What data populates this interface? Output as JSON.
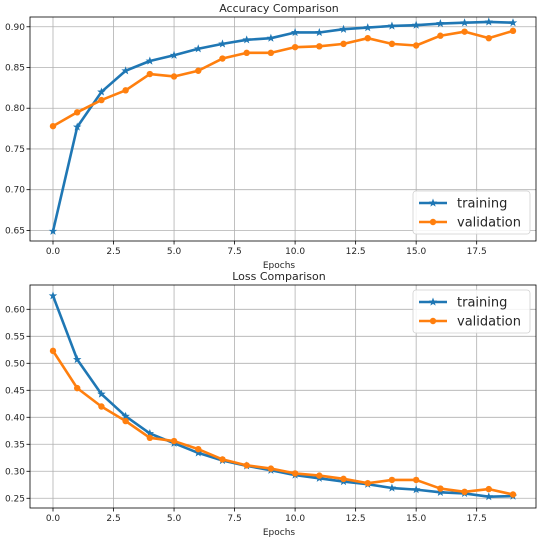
{
  "colors": {
    "training": "#1f77b4",
    "validation": "#ff7f0e"
  },
  "chart_data": [
    {
      "type": "line",
      "title": "Accuracy Comparison",
      "xlabel": "Epochs",
      "ylabel": "",
      "xlim": [
        -0.95,
        19.95
      ],
      "ylim": [
        0.637,
        0.912
      ],
      "xticks": [
        0.0,
        2.5,
        5.0,
        7.5,
        10.0,
        12.5,
        15.0,
        17.5
      ],
      "xtick_labels": [
        "0.0",
        "2.5",
        "5.0",
        "7.5",
        "10.0",
        "12.5",
        "15.0",
        "17.5"
      ],
      "yticks": [
        0.65,
        0.7,
        0.75,
        0.8,
        0.85,
        0.9
      ],
      "ytick_labels": [
        "0.65",
        "0.70",
        "0.75",
        "0.80",
        "0.85",
        "0.90"
      ],
      "grid": true,
      "legend_position": "bottom-right",
      "x": [
        0,
        1,
        2,
        3,
        4,
        5,
        6,
        7,
        8,
        9,
        10,
        11,
        12,
        13,
        14,
        15,
        16,
        17,
        18,
        19
      ],
      "series": [
        {
          "name": "training",
          "marker": "star",
          "values": [
            0.649,
            0.777,
            0.82,
            0.846,
            0.858,
            0.865,
            0.873,
            0.879,
            0.884,
            0.886,
            0.893,
            0.893,
            0.897,
            0.899,
            0.901,
            0.902,
            0.904,
            0.905,
            0.906,
            0.905
          ]
        },
        {
          "name": "validation",
          "marker": "circle",
          "values": [
            0.778,
            0.795,
            0.81,
            0.822,
            0.842,
            0.839,
            0.846,
            0.861,
            0.868,
            0.868,
            0.875,
            0.876,
            0.879,
            0.886,
            0.879,
            0.877,
            0.889,
            0.894,
            0.886,
            0.895
          ]
        }
      ]
    },
    {
      "type": "line",
      "title": "Loss Comparison",
      "xlabel": "Epochs",
      "ylabel": "",
      "xlim": [
        -0.95,
        19.95
      ],
      "ylim": [
        0.232,
        0.645
      ],
      "xticks": [
        0.0,
        2.5,
        5.0,
        7.5,
        10.0,
        12.5,
        15.0,
        17.5
      ],
      "xtick_labels": [
        "0.0",
        "2.5",
        "5.0",
        "7.5",
        "10.0",
        "12.5",
        "15.0",
        "17.5"
      ],
      "yticks": [
        0.25,
        0.3,
        0.35,
        0.4,
        0.45,
        0.5,
        0.55,
        0.6
      ],
      "ytick_labels": [
        "0.25",
        "0.30",
        "0.35",
        "0.40",
        "0.45",
        "0.50",
        "0.55",
        "0.60"
      ],
      "grid": true,
      "legend_position": "top-right",
      "x": [
        0,
        1,
        2,
        3,
        4,
        5,
        6,
        7,
        8,
        9,
        10,
        11,
        12,
        13,
        14,
        15,
        16,
        17,
        18,
        19
      ],
      "series": [
        {
          "name": "training",
          "marker": "star",
          "values": [
            0.625,
            0.507,
            0.443,
            0.402,
            0.37,
            0.352,
            0.334,
            0.32,
            0.31,
            0.302,
            0.293,
            0.287,
            0.281,
            0.276,
            0.269,
            0.266,
            0.261,
            0.259,
            0.253,
            0.254
          ]
        },
        {
          "name": "validation",
          "marker": "circle",
          "values": [
            0.523,
            0.454,
            0.42,
            0.393,
            0.362,
            0.356,
            0.341,
            0.322,
            0.311,
            0.305,
            0.296,
            0.292,
            0.286,
            0.278,
            0.284,
            0.284,
            0.268,
            0.262,
            0.267,
            0.257
          ]
        }
      ]
    }
  ]
}
